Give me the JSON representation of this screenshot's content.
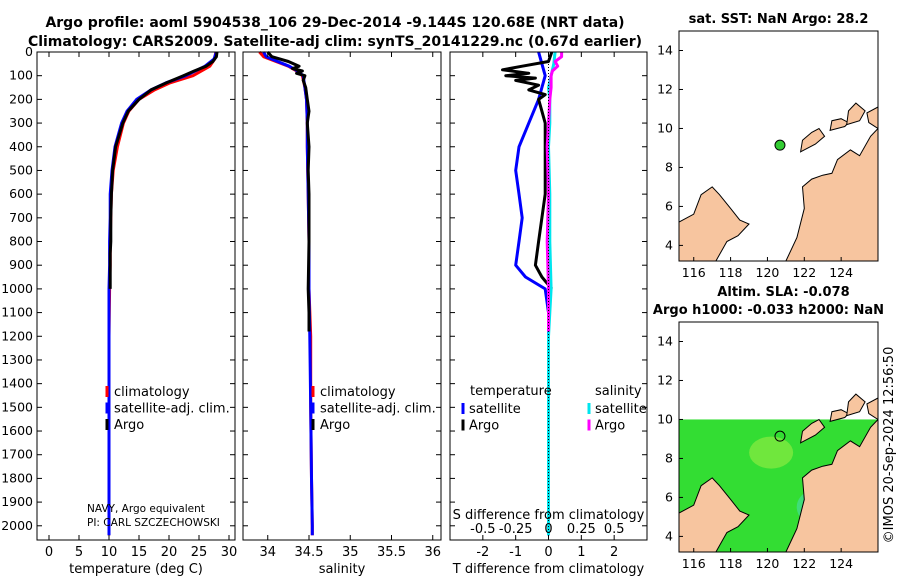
{
  "title": {
    "line1": "Argo profile: aoml 5904538_106 29-Dec-2014 -9.144S 120.68E (NRT data)",
    "line2": "Climatology: CARS2009. Satellite-adj clim: synTS_20141229.nc (0.67d earlier)"
  },
  "colors": {
    "climatology": "#ff0000",
    "satellite": "#0000ff",
    "argo": "#000000",
    "sat_salinity": "#00e5ee",
    "argo_salinity": "#ff00ff",
    "land": "#f7c59f",
    "sst_field": "#33dd33",
    "marker": "#33cc33"
  },
  "chart_data": [
    {
      "type": "line",
      "name": "temperature-profile",
      "xlabel": "temperature (deg C)",
      "ylabel": "",
      "xlim": [
        -2,
        31
      ],
      "ylim": [
        2060,
        0
      ],
      "xticks": [
        0,
        5,
        10,
        15,
        20,
        25,
        30
      ],
      "yticks": [
        0,
        100,
        200,
        300,
        400,
        500,
        600,
        700,
        800,
        900,
        1000,
        1100,
        1200,
        1300,
        1400,
        1500,
        1600,
        1700,
        1800,
        1900,
        2000
      ],
      "legend": [
        "climatology",
        "satellite-adj. clim.",
        "Argo"
      ],
      "annotation": [
        "NAVY, Argo equivalent",
        "PI: CARL SZCZECHOWSKI"
      ],
      "series": [
        {
          "name": "climatology",
          "depth": [
            0,
            30,
            60,
            100,
            130,
            160,
            200,
            250,
            300,
            400,
            500,
            600,
            700,
            800,
            900,
            1000,
            1200,
            1500,
            1800,
            2000,
            2040
          ],
          "values": [
            27.8,
            27.6,
            26.8,
            24.0,
            20.2,
            17.6,
            15.0,
            13.3,
            12.4,
            11.4,
            10.7,
            10.4,
            10.3,
            10.2,
            10.2,
            10.1,
            10.0,
            10.0,
            10.0,
            10.0,
            10.0
          ]
        },
        {
          "name": "satellite-adj. clim.",
          "depth": [
            0,
            30,
            60,
            100,
            130,
            160,
            200,
            250,
            300,
            400,
            500,
            600,
            700,
            800,
            900,
            1000,
            1200,
            1500,
            1800,
            2000,
            2040
          ],
          "values": [
            27.9,
            27.5,
            26.0,
            22.8,
            19.5,
            17.0,
            14.6,
            13.0,
            12.1,
            11.0,
            10.5,
            10.2,
            10.2,
            10.1,
            10.1,
            10.0,
            10.0,
            10.0,
            10.0,
            10.0,
            10.0
          ]
        },
        {
          "name": "Argo",
          "depth": [
            0,
            20,
            40,
            60,
            80,
            100,
            130,
            160,
            200,
            250,
            300,
            400,
            500,
            600,
            700,
            800,
            850,
            900,
            950,
            1000
          ],
          "values": [
            28.0,
            27.9,
            27.3,
            26.2,
            24.2,
            22.4,
            19.6,
            17.0,
            15.0,
            13.2,
            12.3,
            11.1,
            10.6,
            10.4,
            10.3,
            10.3,
            10.2,
            10.2,
            10.2,
            10.2
          ]
        }
      ]
    },
    {
      "type": "line",
      "name": "salinity-profile",
      "xlabel": "salinity",
      "ylabel": "",
      "xlim": [
        33.7,
        36.1
      ],
      "ylim": [
        2060,
        0
      ],
      "xticks": [
        34,
        34.5,
        35,
        35.5,
        36
      ],
      "xticklabels": [
        "34",
        "34.5",
        "35",
        "35.5",
        "36"
      ],
      "legend": [
        "climatology",
        "satellite-adj. clim.",
        "Argo"
      ],
      "series": [
        {
          "name": "climatology",
          "depth": [
            0,
            20,
            40,
            60,
            80,
            100,
            150,
            200,
            300,
            400,
            600,
            800,
            1000,
            1200,
            1500,
            1800,
            2000,
            2040
          ],
          "values": [
            33.9,
            33.95,
            34.1,
            34.25,
            34.35,
            34.42,
            34.45,
            34.47,
            34.48,
            34.48,
            34.49,
            34.5,
            34.5,
            34.52,
            34.52,
            34.53,
            34.54,
            34.54
          ]
        },
        {
          "name": "satellite-adj. clim.",
          "depth": [
            0,
            20,
            40,
            60,
            80,
            100,
            150,
            200,
            300,
            400,
            600,
            800,
            1000,
            1200,
            1500,
            1800,
            2000,
            2040
          ],
          "values": [
            33.95,
            33.98,
            34.12,
            34.26,
            34.36,
            34.43,
            34.45,
            34.47,
            34.48,
            34.48,
            34.49,
            34.5,
            34.5,
            34.51,
            34.52,
            34.53,
            34.54,
            34.54
          ]
        },
        {
          "name": "Argo",
          "depth": [
            0,
            20,
            40,
            60,
            70,
            80,
            90,
            100,
            120,
            150,
            200,
            250,
            300,
            400,
            500,
            600,
            800,
            1000,
            1100,
            1180
          ],
          "values": [
            34.0,
            34.05,
            34.25,
            34.38,
            34.3,
            34.42,
            34.35,
            34.45,
            34.43,
            34.46,
            34.48,
            34.5,
            34.48,
            34.5,
            34.49,
            34.5,
            34.5,
            34.49,
            34.5,
            34.5
          ]
        }
      ]
    },
    {
      "type": "line",
      "name": "difference-profile",
      "xlabel": "T difference from climatology",
      "secondary_xlabel": "S difference from climatology",
      "xlim": [
        -3,
        3
      ],
      "ylim": [
        2060,
        0
      ],
      "xticks": [
        -2,
        -1,
        0,
        1,
        2
      ],
      "secondary_xticks": [
        -0.5,
        -0.25,
        0,
        0.25,
        0.5
      ],
      "secondary_xticklabels": [
        "-0.5",
        "-0.25",
        "0",
        "0.25",
        "0.5"
      ],
      "legend_titles": [
        "temperature",
        "salinity"
      ],
      "legend_left": [
        "satellite",
        "Argo"
      ],
      "legend_right": [
        "satellite",
        "Argo"
      ],
      "series": [
        {
          "name": "T satellite",
          "depth": [
            0,
            50,
            100,
            150,
            200,
            300,
            400,
            500,
            600,
            700,
            800,
            900,
            950,
            1000,
            1100,
            1200,
            1400,
            1600,
            1800,
            2000,
            2040
          ],
          "values": [
            -0.3,
            -0.2,
            -0.1,
            -0.2,
            -0.3,
            -0.6,
            -0.9,
            -1.0,
            -0.9,
            -0.8,
            -0.9,
            -1.0,
            -0.7,
            -0.1,
            0.0,
            0.0,
            0.0,
            0.0,
            0.0,
            0.0,
            0.0
          ]
        },
        {
          "name": "T Argo",
          "depth": [
            0,
            40,
            60,
            75,
            90,
            100,
            110,
            120,
            140,
            160,
            180,
            200,
            250,
            300,
            400,
            500,
            600,
            700,
            800,
            900,
            950,
            1000
          ],
          "values": [
            0.1,
            0.0,
            -0.8,
            -1.4,
            -0.6,
            -1.3,
            -0.4,
            -1.0,
            -0.3,
            -0.6,
            -0.1,
            -0.3,
            -0.2,
            -0.1,
            -0.1,
            -0.1,
            -0.1,
            -0.2,
            -0.3,
            -0.4,
            -0.2,
            0.1
          ]
        },
        {
          "name": "S satellite",
          "depth": [
            0,
            50,
            100,
            150,
            200,
            300,
            400,
            600,
            800,
            1000,
            1200,
            1500,
            1800,
            2000,
            2040
          ],
          "values": [
            0.05,
            0.04,
            0.02,
            0.0,
            0.01,
            0.01,
            0.0,
            0.01,
            0.01,
            0.02,
            0.0,
            0.0,
            0.0,
            0.0,
            0.0
          ]
        },
        {
          "name": "S Argo",
          "depth": [
            0,
            20,
            40,
            60,
            80,
            100,
            150,
            200,
            300,
            400,
            600,
            800,
            1000,
            1100,
            1180
          ],
          "values": [
            0.1,
            0.1,
            0.05,
            0.07,
            0.03,
            0.02,
            0.02,
            0.01,
            0.0,
            -0.01,
            0.0,
            -0.01,
            0.0,
            0.0,
            0.0
          ]
        }
      ]
    },
    {
      "type": "map",
      "name": "sst-map",
      "title": "sat. SST: NaN Argo: 28.2",
      "xlim": [
        115.2,
        126.0
      ],
      "ylim": [
        3.2,
        15.0
      ],
      "xticks": [
        116,
        118,
        120,
        122,
        124
      ],
      "yticks": [
        4,
        6,
        8,
        10,
        12,
        14
      ],
      "float_position": [
        120.68,
        9.144
      ]
    },
    {
      "type": "map",
      "name": "sla-map",
      "title_line1": "Altim. SLA: -0.078",
      "title_line2": "Argo h1000: -0.033 h2000: NaN",
      "xlim": [
        115.2,
        126.0
      ],
      "ylim": [
        3.2,
        15.0
      ],
      "xticks": [
        116,
        118,
        120,
        122,
        124
      ],
      "yticks": [
        4,
        6,
        8,
        10,
        12,
        14
      ],
      "float_position": [
        120.68,
        9.144
      ],
      "field_extent_lat": [
        3.2,
        10.0
      ]
    }
  ],
  "watermark": "©IMOS 20-Sep-2024 12:56:50"
}
